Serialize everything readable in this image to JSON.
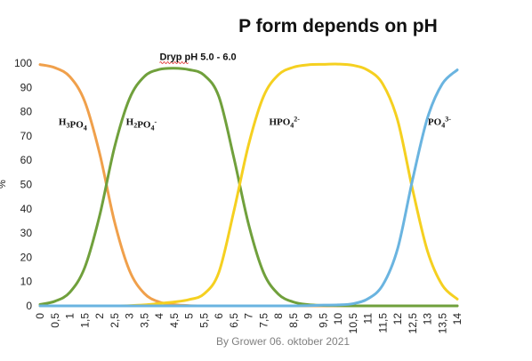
{
  "chart_data": {
    "type": "line",
    "title": "P form depends on pH",
    "xlabel": "",
    "ylabel": "%",
    "xlim": [
      0,
      14
    ],
    "ylim": [
      0,
      100
    ],
    "y_ticks": [
      0,
      10,
      20,
      30,
      40,
      50,
      60,
      70,
      80,
      90,
      100
    ],
    "x_ticks": [
      "0",
      "0,5",
      "1",
      "1,5",
      "2",
      "2,5",
      "3",
      "3,5",
      "4",
      "4,5",
      "5",
      "5,5",
      "6",
      "6,5",
      "7",
      "7,5",
      "8",
      "8,5",
      "9",
      "9,5",
      "10",
      "10,5",
      "11",
      "11,5",
      "12",
      "12,5",
      "13",
      "13,5",
      "14"
    ],
    "grid": false,
    "annotation": {
      "text": "Dryp pH 5.0 - 6.0",
      "x": 5.3,
      "y": 102
    },
    "footer": "By Grower 06. oktober 2021",
    "x": [
      0,
      0.5,
      1,
      1.5,
      2,
      2.5,
      3,
      3.5,
      4,
      4.5,
      5,
      5.5,
      6,
      6.5,
      7,
      7.5,
      8,
      8.5,
      9,
      9.5,
      10,
      10.5,
      11,
      11.5,
      12,
      12.5,
      13,
      13.5,
      14
    ],
    "series": [
      {
        "name": "H3PO4",
        "color": "#f0a04b",
        "label_x": 1.1,
        "label_y": 76,
        "values": [
          99.4,
          98.1,
          94.4,
          84.2,
          62.8,
          34.6,
          14.6,
          5.1,
          1.6,
          0.5,
          0.1,
          0.0,
          0.0,
          0.0,
          0.0,
          0.0,
          0.0,
          0.0,
          0.0,
          0.0,
          0.0,
          0.0,
          0.0,
          0.0,
          0.0,
          0.0,
          0.0,
          0.0,
          0.0
        ]
      },
      {
        "name": "H2PO4-",
        "color": "#70a03c",
        "label_x": 3.4,
        "label_y": 76,
        "values": [
          0.6,
          1.9,
          5.6,
          15.8,
          37.2,
          65.4,
          85.3,
          94.5,
          97.4,
          97.9,
          97.3,
          95.1,
          86.2,
          61.2,
          33.5,
          13.7,
          4.8,
          1.6,
          0.5,
          0.2,
          0.1,
          0.0,
          0.0,
          0.0,
          0.0,
          0.0,
          0.0,
          0.0,
          0.0
        ]
      },
      {
        "name": "HPO4 2-",
        "color": "#f5d020",
        "label_x": 8.2,
        "label_y": 76,
        "values": [
          0.0,
          0.0,
          0.0,
          0.0,
          0.0,
          0.0,
          0.1,
          0.4,
          1.0,
          1.6,
          2.6,
          4.9,
          13.8,
          38.8,
          66.5,
          86.3,
          95.2,
          98.3,
          99.3,
          99.5,
          99.6,
          99.1,
          97.1,
          91.4,
          76.4,
          48.0,
          22.6,
          8.5,
          2.8
        ]
      },
      {
        "name": "PO4 3-",
        "color": "#6ab4e0",
        "label_x": 13.4,
        "label_y": 76,
        "values": [
          0,
          0,
          0,
          0,
          0,
          0,
          0,
          0,
          0,
          0,
          0,
          0,
          0,
          0,
          0,
          0,
          0,
          0,
          0.1,
          0.3,
          0.4,
          0.9,
          2.9,
          8.6,
          23.6,
          52.0,
          77.4,
          91.5,
          97.2
        ]
      }
    ]
  }
}
